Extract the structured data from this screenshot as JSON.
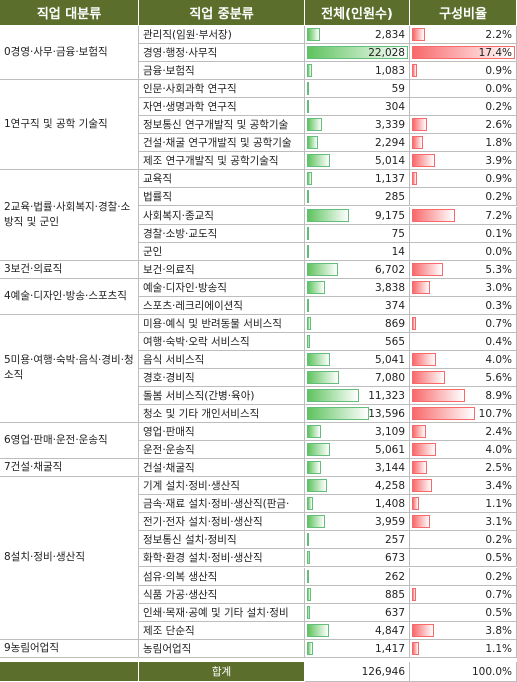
{
  "headers": {
    "major": "직업 대분류",
    "middle": "직업 중분류",
    "count": "전체(인원수)",
    "ratio": "구성비율"
  },
  "categories": [
    {
      "label": "0경영·사무·금융·보험직",
      "rows": [
        {
          "name": "관리직(임원·부서장)",
          "count": 2834,
          "count_text": "2,834",
          "ratio": 2.2,
          "ratio_text": "2.2%"
        },
        {
          "name": "경영·행정·사무직",
          "count": 22028,
          "count_text": "22,028",
          "ratio": 17.4,
          "ratio_text": "17.4%"
        },
        {
          "name": "금융·보험직",
          "count": 1083,
          "count_text": "1,083",
          "ratio": 0.9,
          "ratio_text": "0.9%"
        }
      ]
    },
    {
      "label": "1연구직 및 공학 기술직",
      "rows": [
        {
          "name": "인문·사회과학 연구직",
          "count": 59,
          "count_text": "59",
          "ratio": 0.0,
          "ratio_text": "0.0%"
        },
        {
          "name": "자연·생명과학 연구직",
          "count": 304,
          "count_text": "304",
          "ratio": 0.2,
          "ratio_text": "0.2%"
        },
        {
          "name": "정보통신 연구개발직 및 공학기술",
          "count": 3339,
          "count_text": "3,339",
          "ratio": 2.6,
          "ratio_text": "2.6%"
        },
        {
          "name": "건설·채굴 연구개발직 및 공학기술",
          "count": 2294,
          "count_text": "2,294",
          "ratio": 1.8,
          "ratio_text": "1.8%"
        },
        {
          "name": "제조 연구개발직 및 공학기술직",
          "count": 5014,
          "count_text": "5,014",
          "ratio": 3.9,
          "ratio_text": "3.9%"
        }
      ]
    },
    {
      "label": "2교육·법률·사회복지·경찰·소방직 및 군인",
      "rows": [
        {
          "name": "교육직",
          "count": 1137,
          "count_text": "1,137",
          "ratio": 0.9,
          "ratio_text": "0.9%"
        },
        {
          "name": "법률직",
          "count": 285,
          "count_text": "285",
          "ratio": 0.2,
          "ratio_text": "0.2%"
        },
        {
          "name": "사회복지·종교직",
          "count": 9175,
          "count_text": "9,175",
          "ratio": 7.2,
          "ratio_text": "7.2%"
        },
        {
          "name": "경찰·소방·교도직",
          "count": 75,
          "count_text": "75",
          "ratio": 0.1,
          "ratio_text": "0.1%"
        },
        {
          "name": "군인",
          "count": 14,
          "count_text": "14",
          "ratio": 0.0,
          "ratio_text": "0.0%"
        }
      ]
    },
    {
      "label": "3보건·의료직",
      "rows": [
        {
          "name": "보건·의료직",
          "count": 6702,
          "count_text": "6,702",
          "ratio": 5.3,
          "ratio_text": "5.3%"
        }
      ]
    },
    {
      "label": "4예술·디자인·방송·스포츠직",
      "rows": [
        {
          "name": "예술·디자인·방송직",
          "count": 3838,
          "count_text": "3,838",
          "ratio": 3.0,
          "ratio_text": "3.0%"
        },
        {
          "name": "스포츠·레크리에이션직",
          "count": 374,
          "count_text": "374",
          "ratio": 0.3,
          "ratio_text": "0.3%"
        }
      ]
    },
    {
      "label": "5미용·여행·숙박·음식·경비·청소직",
      "rows": [
        {
          "name": "미용·예식 및 반려동물 서비스직",
          "count": 869,
          "count_text": "869",
          "ratio": 0.7,
          "ratio_text": "0.7%"
        },
        {
          "name": "여행·숙박·오락 서비스직",
          "count": 565,
          "count_text": "565",
          "ratio": 0.4,
          "ratio_text": "0.4%"
        },
        {
          "name": "음식 서비스직",
          "count": 5041,
          "count_text": "5,041",
          "ratio": 4.0,
          "ratio_text": "4.0%"
        },
        {
          "name": "경호·경비직",
          "count": 7080,
          "count_text": "7,080",
          "ratio": 5.6,
          "ratio_text": "5.6%"
        },
        {
          "name": "돌봄 서비스직(간병·육아)",
          "count": 11323,
          "count_text": "11,323",
          "ratio": 8.9,
          "ratio_text": "8.9%"
        },
        {
          "name": "청소 및 기타 개인서비스직",
          "count": 13596,
          "count_text": "13,596",
          "ratio": 10.7,
          "ratio_text": "10.7%"
        }
      ]
    },
    {
      "label": "6영업·판매·운전·운송직",
      "rows": [
        {
          "name": "영업·판매직",
          "count": 3109,
          "count_text": "3,109",
          "ratio": 2.4,
          "ratio_text": "2.4%"
        },
        {
          "name": "운전·운송직",
          "count": 5061,
          "count_text": "5,061",
          "ratio": 4.0,
          "ratio_text": "4.0%"
        }
      ]
    },
    {
      "label": "7건설·채굴직",
      "rows": [
        {
          "name": "건설·채굴직",
          "count": 3144,
          "count_text": "3,144",
          "ratio": 2.5,
          "ratio_text": "2.5%"
        }
      ]
    },
    {
      "label": "8설치·정비·생산직",
      "rows": [
        {
          "name": "기계 설치·정비·생산직",
          "count": 4258,
          "count_text": "4,258",
          "ratio": 3.4,
          "ratio_text": "3.4%"
        },
        {
          "name": "금속·재료 설치·정비·생산직(판금·",
          "count": 1408,
          "count_text": "1,408",
          "ratio": 1.1,
          "ratio_text": "1.1%"
        },
        {
          "name": "전기·전자 설치·정비·생산직",
          "count": 3959,
          "count_text": "3,959",
          "ratio": 3.1,
          "ratio_text": "3.1%"
        },
        {
          "name": "정보통신 설치·정비직",
          "count": 257,
          "count_text": "257",
          "ratio": 0.2,
          "ratio_text": "0.2%"
        },
        {
          "name": "화학·환경 설치·정비·생산직",
          "count": 673,
          "count_text": "673",
          "ratio": 0.5,
          "ratio_text": "0.5%"
        },
        {
          "name": "섬유·의복 생산직",
          "count": 262,
          "count_text": "262",
          "ratio": 0.2,
          "ratio_text": "0.2%"
        },
        {
          "name": "식품 가공·생산직",
          "count": 885,
          "count_text": "885",
          "ratio": 0.7,
          "ratio_text": "0.7%"
        },
        {
          "name": "인쇄·목재·공예 및 기타 설치·정비",
          "count": 637,
          "count_text": "637",
          "ratio": 0.5,
          "ratio_text": "0.5%"
        },
        {
          "name": "제조 단순직",
          "count": 4847,
          "count_text": "4,847",
          "ratio": 3.8,
          "ratio_text": "3.8%"
        }
      ]
    },
    {
      "label": "9농림어업직",
      "rows": [
        {
          "name": "농림어업직",
          "count": 1417,
          "count_text": "1,417",
          "ratio": 1.1,
          "ratio_text": "1.1%"
        }
      ]
    }
  ],
  "total": {
    "label": "합계",
    "count_text": "126,946",
    "ratio_text": "100.0%"
  },
  "colors": {
    "header_bg": "#5b6e2c",
    "count_bar": "#63be7b",
    "ratio_bar": "#f8696b"
  }
}
